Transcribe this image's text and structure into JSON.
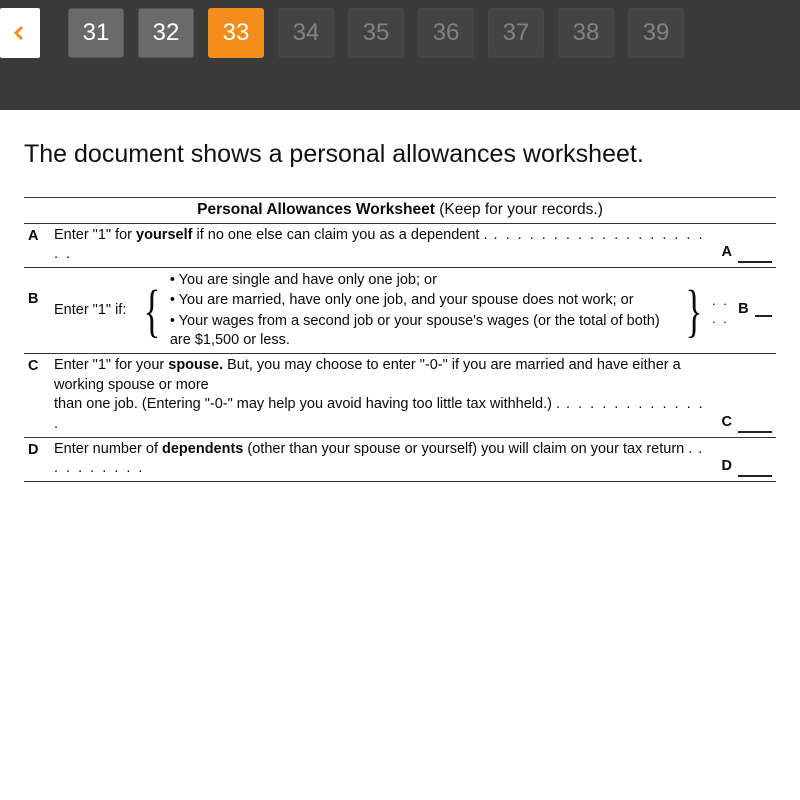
{
  "nav": {
    "back_icon": "chevron-left",
    "items": [
      {
        "label": "31",
        "active": false,
        "faded": false
      },
      {
        "label": "32",
        "active": false,
        "faded": false
      },
      {
        "label": "33",
        "active": true,
        "faded": false
      },
      {
        "label": "34",
        "active": false,
        "faded": true
      },
      {
        "label": "35",
        "active": false,
        "faded": true
      },
      {
        "label": "36",
        "active": false,
        "faded": true
      },
      {
        "label": "37",
        "active": false,
        "faded": true
      },
      {
        "label": "38",
        "active": false,
        "faded": true
      },
      {
        "label": "39",
        "active": false,
        "faded": true
      }
    ],
    "colors": {
      "bar_bg": "#3a3a3a",
      "item_bg": "#6a6a6a",
      "item_active_bg": "#f28c1a",
      "item_faded_bg": "#4b4b4b",
      "back_bg": "#ffffff",
      "arrow_color": "#f28c1a"
    }
  },
  "intro_text": "The document shows a personal allowances worksheet.",
  "worksheet": {
    "title_bold": "Personal Allowances Worksheet",
    "title_paren": " (Keep for your records.)",
    "rows": {
      "A": {
        "letter": "A",
        "text_pre": "Enter \"1\" for ",
        "bold": "yourself",
        "text_post": " if no one else can claim you as a dependent .",
        "dots": "  .  .  .  .  .  .  .  .  .  .  .  .  .  .  .  .  .  .  .  .",
        "tail": "A"
      },
      "B": {
        "letter": "B",
        "left_label": "Enter \"1\" if:",
        "bullets": [
          "• You are single and have only one job; or",
          "• You are married, have only one job, and your spouse does not work; or",
          "• Your wages from a second job or your spouse's wages (or the total of both) are $1,500 or less."
        ],
        "dots": ".  .  .  .",
        "tail": "B"
      },
      "C": {
        "letter": "C",
        "text_pre": "Enter \"1\" for your ",
        "bold": "spouse.",
        "text_post1": " But, you may choose to enter \"-0-\" if you are married and have either a working spouse or more",
        "text_post2": "than one job. (Entering \"-0-\" may help you avoid having too little tax withheld.) .",
        "dots": "  .  .  .  .  .  .  .  .  .  .  .  .  .",
        "tail": "C"
      },
      "D": {
        "letter": "D",
        "text_pre": "Enter number of ",
        "bold": "dependents",
        "text_post": " (other than your spouse or yourself) you will claim on your tax return .",
        "dots": "  .  .  .  .  .  .  .  .  .",
        "tail": "D"
      }
    }
  }
}
